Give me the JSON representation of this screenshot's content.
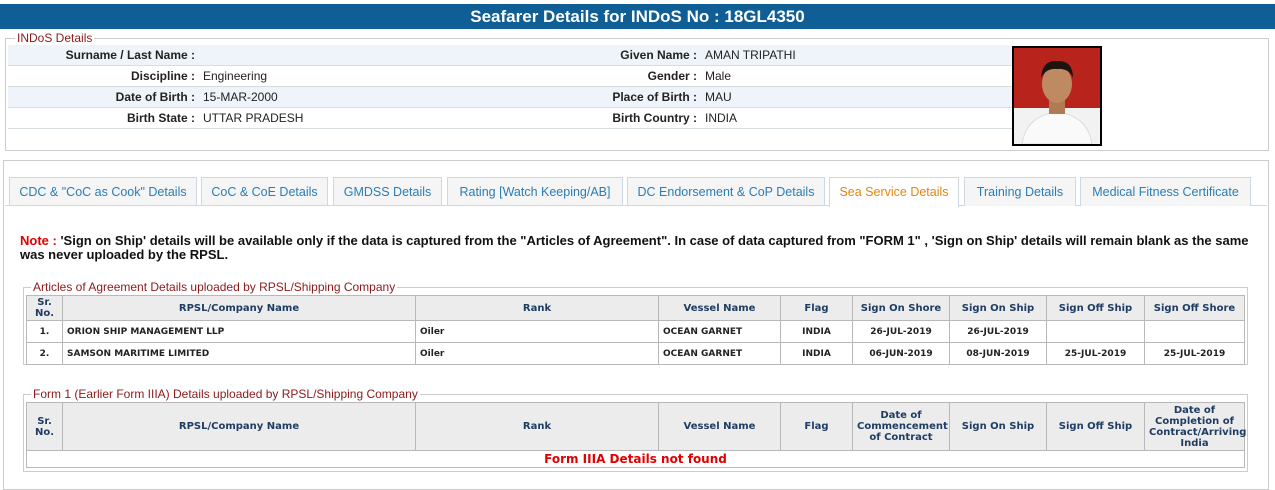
{
  "header": {
    "title": "Seafarer Details for INDoS No : 18GL4350"
  },
  "indos": {
    "legend": "INDoS Details",
    "rows": [
      [
        {
          "label": "Surname / Last Name :",
          "value": null
        },
        {
          "label": "Given Name :",
          "value": "AMAN TRIPATHI"
        }
      ],
      [
        {
          "label": "Discipline :",
          "value": "Engineering"
        },
        {
          "label": "Gender :",
          "value": "Male"
        }
      ],
      [
        {
          "label": "Date of Birth :",
          "value": "15-MAR-2000"
        },
        {
          "label": "Place of Birth :",
          "value": "MAU"
        }
      ],
      [
        {
          "label": "Birth State :",
          "value": "UTTAR PRADESH"
        },
        {
          "label": "Birth Country :",
          "value": "INDIA"
        }
      ]
    ]
  },
  "tabs": [
    "CDC & \"CoC as Cook\" Details",
    "CoC & CoE Details",
    "GMDSS Details",
    "Rating [Watch Keeping/AB]",
    "DC Endorsement & CoP Details",
    "Sea Service Details",
    "Training Details",
    "Medical Fitness Certificate"
  ],
  "note": {
    "label": "Note :",
    "text": "'Sign on Ship' details will be available only if the data is captured from the \"Articles of Agreement\". In case of data captured from \"FORM 1\" , 'Sign on Ship' details will remain blank as the same was never uploaded by the RPSL."
  },
  "articles": {
    "legend": "Articles of Agreement Details uploaded by RPSL/Shipping Company",
    "columns": [
      "Sr. No.",
      "RPSL/Company Name",
      "Rank",
      "Vessel Name",
      "Flag",
      "Sign On Shore",
      "Sign On Ship",
      "Sign Off Ship",
      "Sign Off Shore"
    ],
    "rows": [
      [
        "1.",
        "ORION SHIP MANAGEMENT LLP",
        "Oiler",
        "OCEAN GARNET",
        "INDIA",
        "26-JUL-2019",
        "26-JUL-2019",
        null,
        null
      ],
      [
        "2.",
        "SAMSON MARITIME LIMITED",
        "Oiler",
        "OCEAN GARNET",
        "INDIA",
        "06-JUN-2019",
        "08-JUN-2019",
        "25-JUL-2019",
        "25-JUL-2019"
      ]
    ]
  },
  "form1": {
    "legend": "Form 1 (Earlier Form IIIA) Details uploaded by RPSL/Shipping Company",
    "columns": [
      "Sr. No.",
      "RPSL/Company Name",
      "Rank",
      "Vessel Name",
      "Flag",
      "Date of Commencement of Contract",
      "Sign On Ship",
      "Sign Off Ship",
      "Date of Completion of Contract/Arriving India"
    ],
    "empty_message": "Form IIIA Details not found"
  }
}
